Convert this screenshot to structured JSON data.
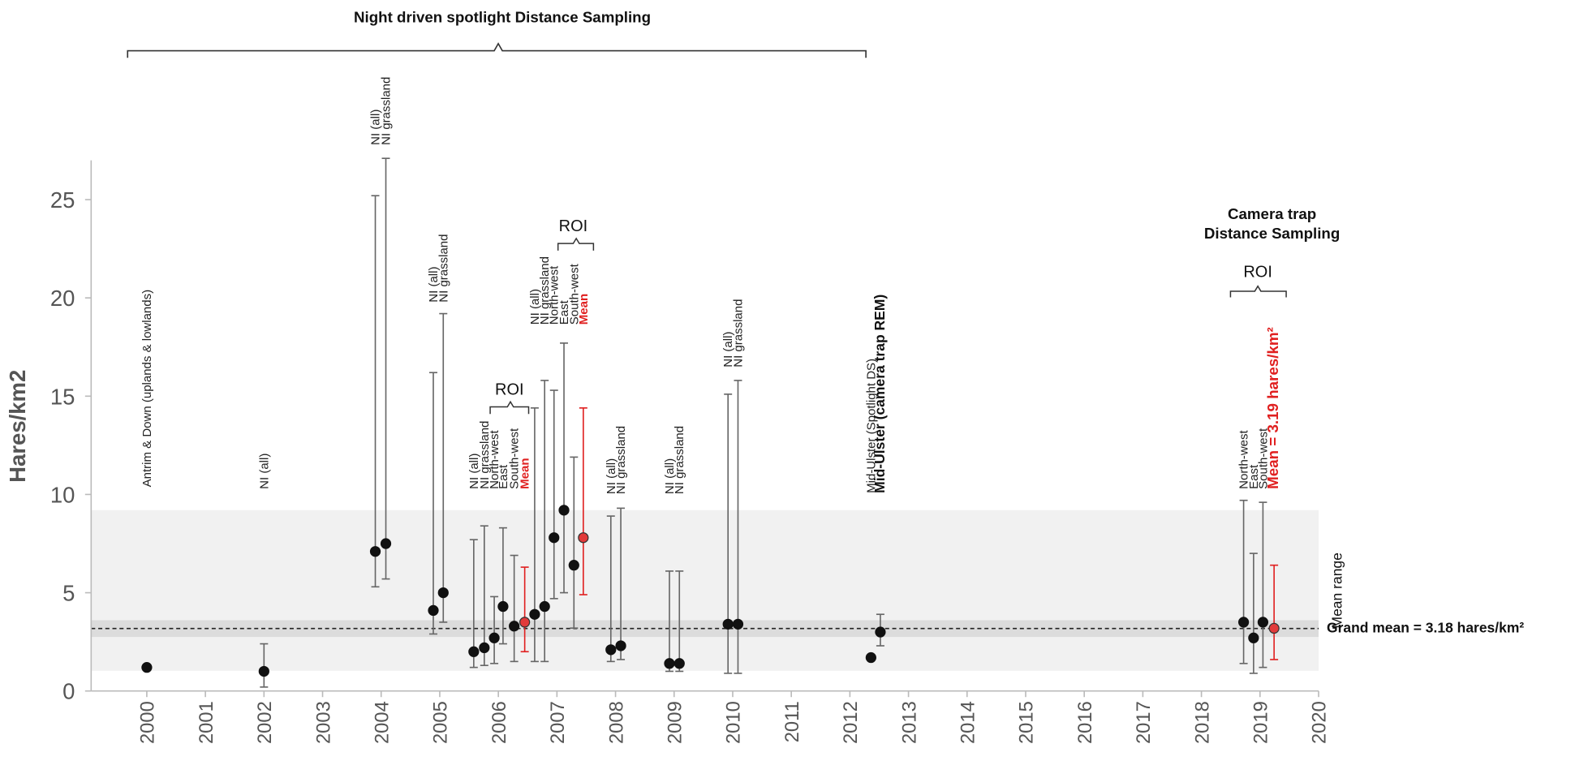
{
  "chart_data": {
    "type": "errorbar",
    "y_label": "Hares/km2",
    "xlim": [
      1999.05,
      2020
    ],
    "xticks": [
      2000,
      2001,
      2002,
      2003,
      2004,
      2005,
      2006,
      2007,
      2008,
      2009,
      2010,
      2011,
      2012,
      2013,
      2014,
      2015,
      2016,
      2017,
      2018,
      2019,
      2020
    ],
    "ylim": [
      0,
      27
    ],
    "yticks": [
      0,
      5,
      10,
      15,
      20,
      25
    ],
    "x": [
      2000.0,
      2002.0,
      2003.9,
      2004.08,
      2004.89,
      2005.06,
      2005.58,
      2005.76,
      2005.93,
      2006.08,
      2006.27,
      2006.45,
      2006.62,
      2006.79,
      2006.95,
      2007.12,
      2007.29,
      2007.45,
      2007.92,
      2008.09,
      2008.92,
      2009.09,
      2009.92,
      2010.09,
      2012.36,
      2012.52,
      2018.72,
      2018.89,
      2019.05,
      2019.24
    ],
    "values": [
      1.2,
      1.0,
      7.1,
      7.5,
      4.1,
      5.0,
      2.0,
      2.2,
      2.7,
      4.3,
      3.3,
      3.5,
      3.9,
      4.3,
      7.8,
      9.2,
      6.4,
      7.8,
      2.1,
      2.3,
      1.4,
      1.4,
      3.4,
      3.4,
      1.7,
      3.0,
      3.5,
      2.7,
      3.5,
      3.19
    ],
    "error_low": [
      null,
      0.2,
      5.3,
      5.7,
      2.9,
      3.5,
      1.2,
      1.3,
      1.4,
      2.4,
      1.5,
      2.0,
      1.5,
      1.5,
      4.7,
      5.0,
      3.2,
      4.9,
      1.5,
      1.6,
      1.0,
      1.0,
      0.9,
      0.9,
      null,
      2.3,
      1.4,
      0.9,
      1.2,
      1.6
    ],
    "error_high": [
      null,
      2.4,
      25.2,
      27.1,
      16.2,
      19.2,
      7.7,
      8.4,
      4.8,
      8.3,
      6.9,
      6.3,
      14.4,
      15.8,
      15.3,
      17.7,
      11.9,
      14.4,
      8.9,
      9.3,
      6.1,
      6.1,
      15.1,
      15.8,
      null,
      3.9,
      9.7,
      7.0,
      9.6,
      6.4
    ],
    "point_labels": [
      "Antrim & Down (uplands & lowlands)",
      "NI (all)",
      "NI (all)",
      "NI grassland",
      "NI (all)",
      "NI grassland",
      "NI (all)",
      "NI grassland",
      "North-west",
      "East",
      "South-west",
      "Mean",
      "NI (all)",
      "NI grassland",
      "North-west",
      "East",
      "South-west",
      "Mean",
      "NI (all)",
      "NI grassland",
      "NI (all)",
      "NI grassland",
      "NI (all)",
      "NI grassland",
      "Mid-Ulster (Spotlight DS)",
      "Mid-Ulster (camera trap REM)",
      "North-west",
      "East",
      "South-west",
      "Mean = 3.19 hares/km²"
    ],
    "styles": [
      "normal",
      "normal",
      "normal",
      "normal",
      "normal",
      "normal",
      "normal",
      "normal",
      "normal",
      "normal",
      "normal",
      "mean",
      "normal",
      "normal",
      "normal",
      "normal",
      "normal",
      "mean",
      "normal",
      "normal",
      "normal",
      "normal",
      "normal",
      "normal",
      "normal",
      "bold",
      "normal",
      "normal",
      "normal",
      "mean-big"
    ],
    "mean_range": [
      1.03,
      9.2
    ],
    "mean_range_label": "Mean range",
    "ci_band": [
      2.75,
      3.6
    ],
    "grand_mean": 3.18,
    "grand_mean_label": "Grand mean = 3.18 hares/km²",
    "top_bracket_label": "Night driven spotlight Distance Sampling",
    "roi_labels": [
      "ROI",
      "ROI",
      "ROI"
    ],
    "camera_trap_label": [
      "Camera trap",
      "Distance Sampling"
    ]
  }
}
